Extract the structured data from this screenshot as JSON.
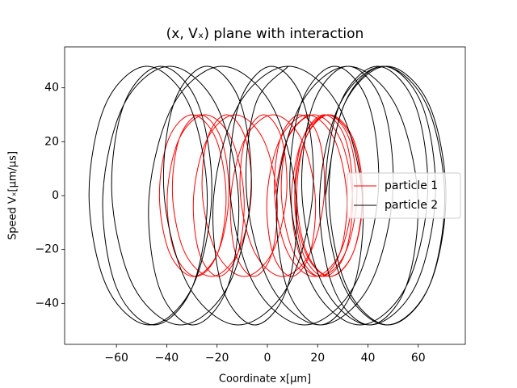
{
  "chart_data": {
    "type": "line",
    "title": "(x, Vₓ) plane with interaction",
    "xlabel": "Coordinate x[μm]",
    "ylabel": "Speed Vₓ[μm/μs]",
    "xlim": [
      -80.6,
      78.7
    ],
    "ylim": [
      -55.2,
      55.2
    ],
    "xticks": [
      {
        "value": -60,
        "label": "−60"
      },
      {
        "value": -40,
        "label": "−40"
      },
      {
        "value": -20,
        "label": "−20"
      },
      0,
      20,
      40,
      60
    ],
    "yticks": [
      {
        "value": -40,
        "label": "−40"
      },
      {
        "value": -20,
        "label": "−20"
      },
      0,
      20,
      40
    ],
    "legend": "center right",
    "series": [
      {
        "name": "particle 1",
        "color": "#ff0000",
        "x": [
          2.9,
          8.1,
          18.6,
          28.9,
          33.8,
          31,
          22.6,
          14.1,
          10.9,
          15.2,
          24.7,
          34.1,
          38,
          34.1,
          24.7,
          15.2,
          10.9,
          14.1,
          22.6,
          31,
          33.8,
          28.9,
          18.6,
          8.1,
          2.9,
          5.2,
          12.9,
          20.5,
          22.6,
          17,
          6,
          -5,
          -10.7,
          -8.8,
          -1.5,
          5.7,
          7.6,
          1.9,
          -9.2,
          -20.2,
          -25.8,
          -23.8,
          -16.3,
          -8.7,
          -6.4,
          -11.7,
          -22.3,
          -32.8,
          -37.7,
          -35,
          -26.8,
          -18.4,
          -15.3,
          -19.7,
          -29.4,
          -38.9,
          -42.9,
          -39.2,
          -29.9,
          -20.5,
          -16.4,
          -19.7,
          -28.3,
          -36.8,
          -39.8,
          -35,
          -24.7,
          -14.4,
          -9.3,
          -11.7,
          -19.4,
          -27.1,
          -29.3,
          -23.8,
          -12.8,
          -1.8,
          3.8,
          1.9,
          -5.4,
          -12.7,
          -14.5,
          -8.8,
          2.3,
          13.4,
          19,
          17,
          9.6,
          2.1,
          -0.1,
          5.2,
          15.9,
          26.5,
          31.6,
          28.9,
          20.8,
          12.6,
          9.6,
          14.1,
          23.9,
          33.6,
          37.7,
          34.1,
          25,
          15.7,
          11.7,
          15.2,
          23.9,
          32.5,
          35.6,
          31,
          20.8,
          10.5,
          5.6,
          8.1,
          15.9
        ],
        "values": [
          0,
          21.2,
          30,
          21.2,
          0,
          -21.2,
          -30,
          -21.2,
          0,
          21.2,
          30,
          21.2,
          0,
          -21.2,
          -30,
          -21.2,
          0,
          21.2,
          30,
          21.2,
          0,
          -21.2,
          -30,
          -21.2,
          0,
          21.2,
          30,
          21.2,
          0,
          -21.2,
          -30,
          -21.2,
          0,
          21.2,
          30,
          21.2,
          0,
          -21.2,
          -30,
          -21.2,
          0,
          21.2,
          30,
          21.2,
          0,
          -21.2,
          -30,
          -21.2,
          0,
          21.2,
          30,
          21.2,
          0,
          -21.2,
          -30,
          -21.2,
          0,
          21.2,
          30,
          21.2,
          0,
          -21.2,
          -30,
          -21.2,
          0,
          21.2,
          30,
          21.2,
          0,
          -21.2,
          -30,
          -21.2,
          0,
          21.2,
          30,
          21.2,
          0,
          -21.2,
          -30,
          -21.2,
          0,
          21.2,
          30,
          21.2,
          0,
          -21.2,
          -30,
          -21.2,
          0,
          21.2,
          30,
          21.2,
          0,
          -21.2,
          -30,
          -21.2,
          0,
          21.2,
          30,
          21.2,
          0,
          -21.2,
          -30,
          -21.2,
          0,
          21.2,
          30,
          21.2,
          0,
          -21.2,
          -30,
          -21.2,
          0,
          21.2,
          30
        ]
      },
      {
        "name": "particle 2",
        "color": "#000000",
        "x": [
          23.1,
          30.6,
          47.5,
          64.2,
          71,
          64.2,
          47.5,
          30.6,
          23.1,
          28.8,
          43.8,
          58.7,
          63.7,
          55.1,
          36.8,
          18.2,
          9.1,
          13.3,
          26.8,
          40.3,
          44,
          34.3,
          14.8,
          -4.7,
          -14.7,
          -11.3,
          1.7,
          14.6,
          18,
          8,
          -11.6,
          -31.1,
          -41,
          -37.3,
          -24,
          -10.5,
          -6.6,
          -15.8,
          -34.5,
          -53.1,
          -61.8,
          -57,
          -42.4,
          -27.5,
          -22.1,
          -29.8,
          -46.9,
          -63.8,
          -70.9,
          -64.3,
          -47.9,
          -31.2,
          -23.9,
          -29.8,
          -45.1,
          -60.1,
          -65.4,
          -57,
          -38.8,
          -20.5,
          -11.5,
          -15.8,
          -29.6,
          -43.1,
          -47,
          -37.3,
          -18,
          1.5,
          11.4,
          8,
          -5,
          -18,
          -21.3,
          -11.3,
          8.3,
          27.9,
          37.8,
          34.3,
          21,
          7.7,
          3.8,
          13.3,
          32.1,
          50.8,
          59.8,
          55.1,
          40.7,
          26.1,
          20.8,
          28.8,
          46.1,
          63.2,
          70.5,
          64.2,
          48,
          31.6,
          24.5,
          30.6,
          46.1,
          61.4,
          66.8,
          58.7,
          40.7,
          22.5,
          13.8,
          18.2,
          32.1,
          45.9,
          49.8,
          40.3,
          21,
          1.7,
          -8.2,
          -4.7,
          8.3
        ],
        "values": [
          0,
          33.9,
          48,
          33.9,
          0,
          -33.9,
          -48,
          -33.9,
          0,
          33.9,
          48,
          33.9,
          0,
          -33.9,
          -48,
          -33.9,
          0,
          33.9,
          48,
          33.9,
          0,
          -33.9,
          -48,
          -33.9,
          0,
          33.9,
          48,
          33.9,
          0,
          -33.9,
          -48,
          -33.9,
          0,
          33.9,
          48,
          33.9,
          0,
          -33.9,
          -48,
          -33.9,
          0,
          33.9,
          48,
          33.9,
          0,
          -33.9,
          -48,
          -33.9,
          0,
          33.9,
          48,
          33.9,
          0,
          -33.9,
          -48,
          -33.9,
          0,
          33.9,
          48,
          33.9,
          0,
          -33.9,
          -48,
          -33.9,
          0,
          33.9,
          48,
          33.9,
          0,
          -33.9,
          -48,
          -33.9,
          0,
          33.9,
          48,
          33.9,
          0,
          -33.9,
          -48,
          -33.9,
          0,
          33.9,
          48,
          33.9,
          0,
          -33.9,
          -48,
          -33.9,
          0,
          33.9,
          48,
          33.9,
          0,
          -33.9,
          -48,
          -33.9,
          0,
          33.9,
          48,
          33.9,
          0,
          -33.9,
          -48,
          -33.9,
          0,
          33.9,
          48,
          33.9,
          0,
          -33.9,
          -48,
          -33.9,
          0,
          33.9,
          48
        ]
      }
    ]
  }
}
